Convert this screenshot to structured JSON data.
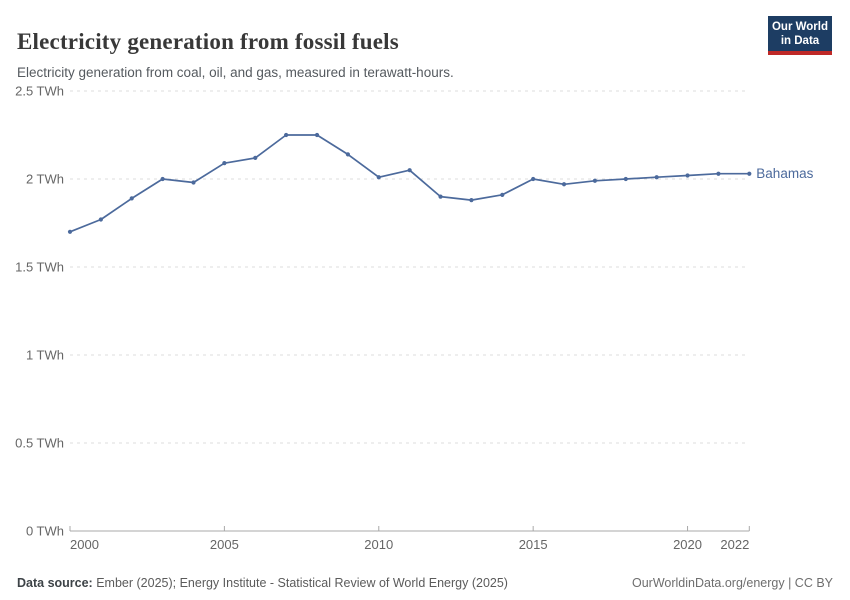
{
  "header": {
    "title": "Electricity generation from fossil fuels",
    "subtitle": "Electricity generation from coal, oil, and gas, measured in terawatt-hours.",
    "logo": {
      "line1": "Our World",
      "line2": "in Data"
    }
  },
  "colors": {
    "series_blue": "#4C6A9C",
    "logo_navy": "#1d3d63",
    "logo_red": "#bf2927",
    "axis_gray": "#a8a8a8",
    "grid_gray": "#dcdcdc",
    "tick_label_gray": "#666666"
  },
  "chart_data": {
    "type": "line",
    "title": "Electricity generation from fossil fuels",
    "unit": "TWh",
    "xlim": [
      2000,
      2022
    ],
    "ylim": [
      0,
      2.5
    ],
    "grid": "horizontal-dashed",
    "legend_position": "end-of-line-label",
    "x": [
      2000,
      2001,
      2002,
      2003,
      2004,
      2005,
      2006,
      2007,
      2008,
      2009,
      2010,
      2011,
      2012,
      2013,
      2014,
      2015,
      2016,
      2017,
      2018,
      2019,
      2020,
      2021,
      2022
    ],
    "series": [
      {
        "name": "Bahamas",
        "color": "#4C6A9C",
        "values": [
          1.7,
          1.77,
          1.89,
          2.0,
          1.98,
          2.09,
          2.12,
          2.25,
          2.25,
          2.14,
          2.01,
          2.05,
          1.9,
          1.88,
          1.91,
          2.0,
          1.97,
          1.99,
          2.0,
          2.01,
          2.02,
          2.03,
          2.03
        ]
      }
    ],
    "xticks": [
      2000,
      2005,
      2010,
      2015,
      2020,
      2022
    ],
    "yticks": [
      {
        "value": 0,
        "label": "0 TWh"
      },
      {
        "value": 0.5,
        "label": "0.5 TWh"
      },
      {
        "value": 1,
        "label": "1 TWh"
      },
      {
        "value": 1.5,
        "label": "1.5 TWh"
      },
      {
        "value": 2,
        "label": "2 TWh"
      },
      {
        "value": 2.5,
        "label": "2.5 TWh"
      }
    ]
  },
  "footer": {
    "datasource_label": "Data source:",
    "datasource_text": " Ember (2025); Energy Institute - Statistical Review of World Energy (2025)",
    "attribution": "OurWorldinData.org/energy | CC BY"
  }
}
